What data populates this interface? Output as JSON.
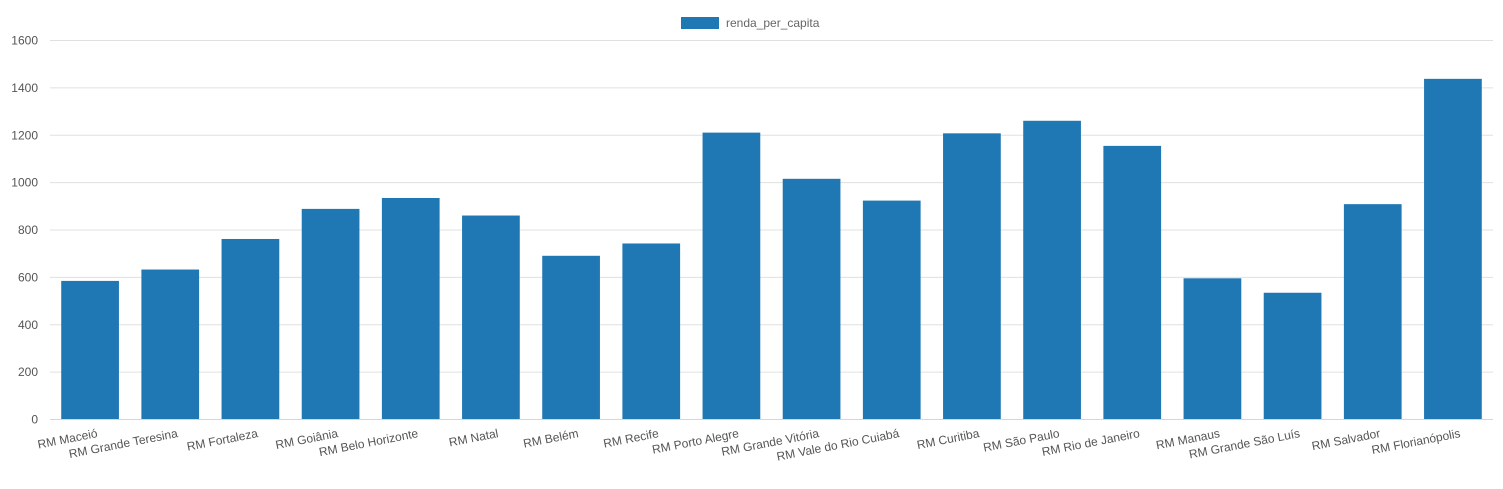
{
  "chart_data": {
    "type": "bar",
    "categories": [
      "RM Maceió",
      "RM Grande Teresina",
      "RM Fortaleza",
      "RM Goiânia",
      "RM Belo Horizonte",
      "RM Natal",
      "RM Belém",
      "RM Recife",
      "RM Porto Alegre",
      "RM Grande Vitória",
      "RM Vale do Rio Cuiabá",
      "RM Curitiba",
      "RM São Paulo",
      "RM Rio de Janeiro",
      "RM Manaus",
      "RM Grande São Luís",
      "RM Salvador",
      "RM Florianópolis"
    ],
    "series": [
      {
        "name": "renda_per_capita",
        "color": "#1f77b4",
        "values": [
          583,
          631,
          760,
          887,
          933,
          859,
          689,
          741,
          1209,
          1014,
          922,
          1206,
          1259,
          1153,
          594,
          533,
          907,
          1436
        ]
      }
    ],
    "yticks": [
      "0",
      "200",
      "400",
      "600",
      "800",
      "1000",
      "1200",
      "1400",
      "1600"
    ],
    "ylim": [
      0,
      1600
    ],
    "grid": true,
    "legend": "top-center"
  }
}
